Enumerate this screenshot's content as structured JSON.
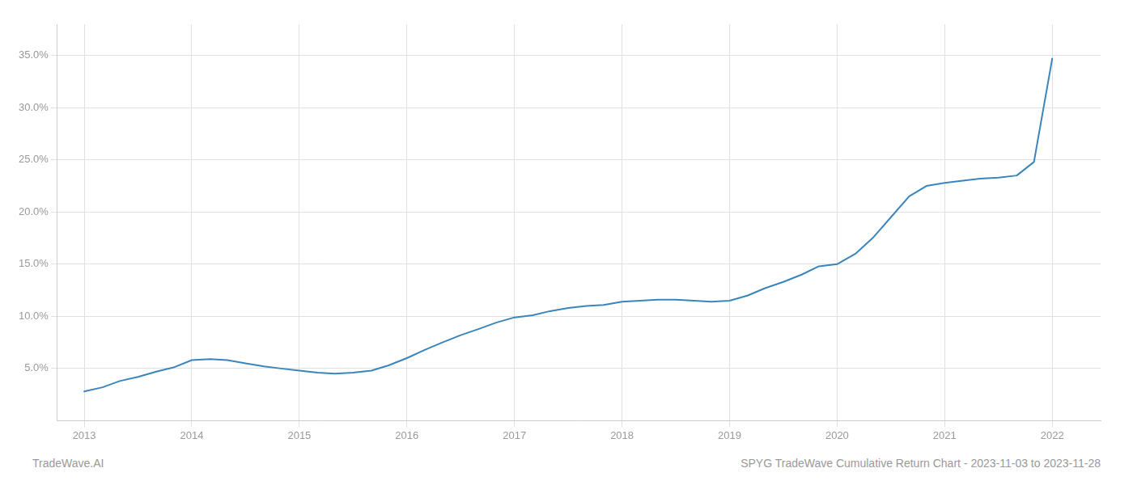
{
  "chart_data": {
    "type": "line",
    "x": [
      2013.0,
      2013.17,
      2013.33,
      2013.5,
      2013.67,
      2013.83,
      2014.0,
      2014.17,
      2014.33,
      2014.5,
      2014.67,
      2014.83,
      2015.0,
      2015.17,
      2015.33,
      2015.5,
      2015.67,
      2015.83,
      2016.0,
      2016.17,
      2016.33,
      2016.5,
      2016.67,
      2016.83,
      2017.0,
      2017.17,
      2017.33,
      2017.5,
      2017.67,
      2017.83,
      2018.0,
      2018.17,
      2018.33,
      2018.5,
      2018.67,
      2018.83,
      2019.0,
      2019.17,
      2019.33,
      2019.5,
      2019.67,
      2019.83,
      2020.0,
      2020.17,
      2020.33,
      2020.5,
      2020.67,
      2020.83,
      2021.0,
      2021.17,
      2021.33,
      2021.5,
      2021.67,
      2021.83,
      2022.0
    ],
    "values": [
      2.8,
      3.2,
      3.8,
      4.2,
      4.7,
      5.1,
      5.8,
      5.9,
      5.8,
      5.5,
      5.2,
      5.0,
      4.8,
      4.6,
      4.5,
      4.6,
      4.8,
      5.3,
      6.0,
      6.8,
      7.5,
      8.2,
      8.8,
      9.4,
      9.9,
      10.1,
      10.5,
      10.8,
      11.0,
      11.1,
      11.4,
      11.5,
      11.6,
      11.6,
      11.5,
      11.4,
      11.5,
      12.0,
      12.7,
      13.3,
      14.0,
      14.8,
      15.0,
      16.0,
      17.5,
      19.5,
      21.5,
      22.5,
      22.8,
      23.0,
      23.2,
      23.3,
      23.5,
      24.8,
      34.7
    ],
    "color": "#3a86bc",
    "xlim": [
      2012.75,
      2022.45
    ],
    "xticks": [
      2013,
      2014,
      2015,
      2016,
      2017,
      2018,
      2019,
      2020,
      2021,
      2022
    ],
    "ylim": [
      0,
      38
    ],
    "yticks": [
      {
        "value": 5.0,
        "label": "5.0%"
      },
      {
        "value": 10.0,
        "label": "10.0%"
      },
      {
        "value": 15.0,
        "label": "15.0%"
      },
      {
        "value": 20.0,
        "label": "20.0%"
      },
      {
        "value": 25.0,
        "label": "25.0%"
      },
      {
        "value": 30.0,
        "label": "30.0%"
      },
      {
        "value": 35.0,
        "label": "35.0%"
      }
    ],
    "grid": true,
    "annotations": [
      "TradeWave.AI",
      "SPYG TradeWave Cumulative Return Chart - 2023-11-03 to 2023-11-28"
    ]
  }
}
